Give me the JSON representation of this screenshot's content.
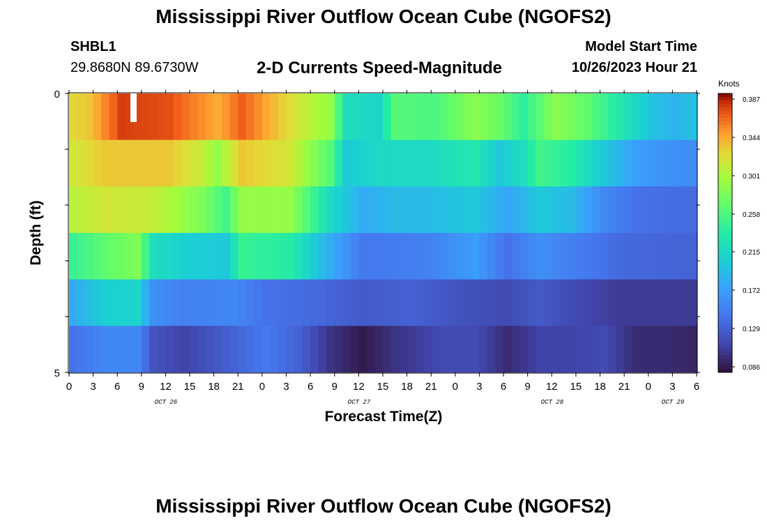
{
  "title": "Mississippi River Outflow Ocean Cube (NGOFS2)",
  "repeated_title": "Mississippi River Outflow Ocean Cube (NGOFS2)",
  "station": {
    "id": "SHBL1",
    "coords": "29.8680N  89.6730W"
  },
  "subtitle": "2-D Currents Speed-Magnitude",
  "model_start": {
    "label": "Model Start Time",
    "value": "10/26/2023 Hour 21"
  },
  "chart_data": {
    "type": "heatmap",
    "xlabel": "Forecast Time(Z)",
    "ylabel": "Depth (ft)",
    "y_tick_labels": [
      "0",
      "5"
    ],
    "x_tick_labels": [
      "0",
      "3",
      "6",
      "9",
      "12",
      "15",
      "18",
      "21",
      "0",
      "3",
      "6",
      "9",
      "12",
      "15",
      "18",
      "21",
      "0",
      "3",
      "6",
      "9",
      "12",
      "15",
      "18",
      "21",
      "0",
      "3",
      "6"
    ],
    "date_labels": [
      "OCT 26",
      "OCT 27",
      "OCT 28",
      "OCT 29"
    ],
    "colorbar": {
      "unit": "Knots",
      "ticks": [
        "0.387",
        "0.344",
        "0.301",
        "0.258",
        "0.215",
        "0.172",
        "0.129",
        "0.086"
      ],
      "vmin": 0.08,
      "vmax": 0.39
    },
    "layers": [
      {
        "keys": [
          [
            0,
            0.325
          ],
          [
            2,
            0.33
          ],
          [
            6,
            0.375
          ],
          [
            12,
            0.37
          ],
          [
            18,
            0.34
          ],
          [
            21,
            0.365
          ],
          [
            27,
            0.32
          ],
          [
            32,
            0.29
          ],
          [
            34,
            0.22
          ],
          [
            36,
            0.215
          ],
          [
            38,
            0.21
          ],
          [
            40,
            0.26
          ],
          [
            45,
            0.255
          ],
          [
            50,
            0.285
          ],
          [
            53,
            0.27
          ],
          [
            56,
            0.24
          ],
          [
            60,
            0.285
          ],
          [
            64,
            0.265
          ],
          [
            68,
            0.23
          ],
          [
            72,
            0.195
          ],
          [
            75,
            0.185
          ],
          [
            78,
            0.2
          ]
        ]
      },
      {
        "keys": [
          [
            0,
            0.315
          ],
          [
            4,
            0.33
          ],
          [
            12,
            0.33
          ],
          [
            16,
            0.31
          ],
          [
            18,
            0.29
          ],
          [
            21,
            0.33
          ],
          [
            27,
            0.315
          ],
          [
            32,
            0.26
          ],
          [
            34,
            0.2
          ],
          [
            38,
            0.215
          ],
          [
            44,
            0.215
          ],
          [
            50,
            0.23
          ],
          [
            53,
            0.2
          ],
          [
            56,
            0.22
          ],
          [
            58,
            0.25
          ],
          [
            62,
            0.235
          ],
          [
            66,
            0.2
          ],
          [
            70,
            0.17
          ],
          [
            78,
            0.155
          ]
        ]
      },
      {
        "keys": [
          [
            0,
            0.305
          ],
          [
            4,
            0.315
          ],
          [
            10,
            0.31
          ],
          [
            16,
            0.28
          ],
          [
            19,
            0.25
          ],
          [
            21,
            0.29
          ],
          [
            27,
            0.29
          ],
          [
            32,
            0.215
          ],
          [
            36,
            0.18
          ],
          [
            40,
            0.19
          ],
          [
            44,
            0.19
          ],
          [
            50,
            0.2
          ],
          [
            54,
            0.175
          ],
          [
            58,
            0.2
          ],
          [
            62,
            0.19
          ],
          [
            66,
            0.155
          ],
          [
            70,
            0.14
          ],
          [
            78,
            0.135
          ]
        ]
      },
      {
        "keys": [
          [
            0,
            0.245
          ],
          [
            4,
            0.265
          ],
          [
            8,
            0.28
          ],
          [
            10,
            0.22
          ],
          [
            14,
            0.205
          ],
          [
            19,
            0.2
          ],
          [
            21,
            0.245
          ],
          [
            27,
            0.235
          ],
          [
            32,
            0.18
          ],
          [
            36,
            0.145
          ],
          [
            44,
            0.15
          ],
          [
            50,
            0.17
          ],
          [
            54,
            0.14
          ],
          [
            58,
            0.16
          ],
          [
            62,
            0.15
          ],
          [
            68,
            0.135
          ],
          [
            78,
            0.13
          ]
        ]
      },
      {
        "keys": [
          [
            0,
            0.18
          ],
          [
            4,
            0.205
          ],
          [
            8,
            0.21
          ],
          [
            10,
            0.16
          ],
          [
            14,
            0.15
          ],
          [
            20,
            0.155
          ],
          [
            24,
            0.14
          ],
          [
            30,
            0.135
          ],
          [
            36,
            0.125
          ],
          [
            42,
            0.13
          ],
          [
            48,
            0.12
          ],
          [
            54,
            0.115
          ],
          [
            58,
            0.125
          ],
          [
            62,
            0.115
          ],
          [
            68,
            0.105
          ],
          [
            78,
            0.105
          ]
        ]
      },
      {
        "keys": [
          [
            0,
            0.14
          ],
          [
            4,
            0.155
          ],
          [
            8,
            0.155
          ],
          [
            10,
            0.12
          ],
          [
            14,
            0.11
          ],
          [
            20,
            0.13
          ],
          [
            24,
            0.145
          ],
          [
            28,
            0.13
          ],
          [
            32,
            0.1
          ],
          [
            36,
            0.085
          ],
          [
            40,
            0.1
          ],
          [
            46,
            0.115
          ],
          [
            50,
            0.115
          ],
          [
            54,
            0.095
          ],
          [
            58,
            0.11
          ],
          [
            62,
            0.11
          ],
          [
            66,
            0.115
          ],
          [
            70,
            0.095
          ],
          [
            74,
            0.095
          ],
          [
            78,
            0.09
          ]
        ]
      }
    ]
  }
}
